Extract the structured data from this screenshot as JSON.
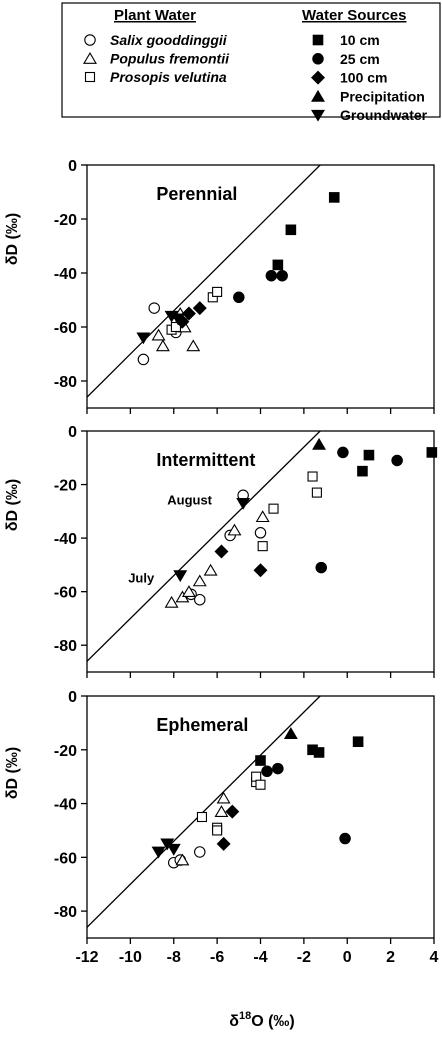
{
  "legend": {
    "plant_water_title": "Plant Water",
    "water_sources_title": "Water Sources",
    "plant_items": [
      {
        "label": "Salix gooddinggii",
        "marker": "circle-open"
      },
      {
        "label": "Populus fremontii",
        "marker": "triangle-open"
      },
      {
        "label": "Prosopis velutina",
        "marker": "square-open"
      }
    ],
    "source_items": [
      {
        "label": "10 cm",
        "marker": "square-filled"
      },
      {
        "label": "25 cm",
        "marker": "circle-filled"
      },
      {
        "label": "100 cm",
        "marker": "diamond-filled"
      },
      {
        "label": "Precipitation",
        "marker": "triangle-filled"
      },
      {
        "label": "Groundwater",
        "marker": "triangle-down-filled"
      }
    ]
  },
  "axes": {
    "x_label": "δ18O (‰)",
    "x_label_base": "δ",
    "x_label_sup": "18",
    "x_label_rest": "O (‰)",
    "y_label": "δD (‰)",
    "x_ticks": [
      -12,
      -10,
      -8,
      -6,
      -4,
      -2,
      0,
      2,
      4
    ],
    "y_ticks": [
      0,
      -20,
      -40,
      -60,
      -80
    ]
  },
  "chart_data": [
    {
      "type": "scatter",
      "title": "Perennial",
      "xlim": [
        -12,
        4
      ],
      "ylim": [
        -90,
        0
      ],
      "xlabel": "",
      "ylabel": "δD (‰)",
      "reference_line": {
        "slope": 8,
        "intercept": 10
      },
      "series": [
        {
          "name": "Salix gooddinggii",
          "marker": "circle-open",
          "points": [
            [
              -8.9,
              -53
            ],
            [
              -9.4,
              -72
            ],
            [
              -7.9,
              -62
            ]
          ]
        },
        {
          "name": "Populus fremontii",
          "marker": "triangle-open",
          "points": [
            [
              -8.7,
              -63
            ],
            [
              -8.5,
              -67
            ],
            [
              -7.5,
              -60
            ],
            [
              -7.1,
              -67
            ],
            [
              -7.7,
              -55
            ]
          ]
        },
        {
          "name": "Prosopis velutina",
          "marker": "square-open",
          "points": [
            [
              -8.1,
              -61
            ],
            [
              -7.6,
              -57
            ],
            [
              -6.2,
              -49
            ],
            [
              -6.0,
              -47
            ],
            [
              -7.9,
              -60
            ]
          ]
        },
        {
          "name": "10 cm",
          "marker": "square-filled",
          "points": [
            [
              -0.6,
              -12
            ],
            [
              -2.6,
              -24
            ],
            [
              -3.2,
              -37
            ]
          ]
        },
        {
          "name": "25 cm",
          "marker": "circle-filled",
          "points": [
            [
              -5.0,
              -49
            ],
            [
              -3.5,
              -41
            ],
            [
              -3.0,
              -41
            ]
          ]
        },
        {
          "name": "100 cm",
          "marker": "diamond-filled",
          "points": [
            [
              -7.3,
              -55
            ],
            [
              -6.8,
              -53
            ],
            [
              -7.6,
              -58
            ]
          ]
        },
        {
          "name": "Groundwater",
          "marker": "triangle-down-filled",
          "points": [
            [
              -9.4,
              -64
            ],
            [
              -8.1,
              -56
            ],
            [
              -7.8,
              -57
            ]
          ]
        }
      ]
    },
    {
      "type": "scatter",
      "title": "Intermittent",
      "xlim": [
        -12,
        4
      ],
      "ylim": [
        -90,
        0
      ],
      "xlabel": "",
      "ylabel": "δD (‰)",
      "reference_line": {
        "slope": 8,
        "intercept": 10
      },
      "annotations": [
        {
          "text": "August",
          "x": -8.3,
          "y": -26
        },
        {
          "text": "July",
          "x": -10.1,
          "y": -55
        }
      ],
      "series": [
        {
          "name": "Salix gooddinggii",
          "marker": "circle-open",
          "points": [
            [
              -4.8,
              -24
            ],
            [
              -5.4,
              -39
            ],
            [
              -4.0,
              -38
            ],
            [
              -7.2,
              -61
            ],
            [
              -6.8,
              -63
            ]
          ]
        },
        {
          "name": "Populus fremontii",
          "marker": "triangle-open",
          "points": [
            [
              -8.1,
              -64
            ],
            [
              -7.6,
              -62
            ],
            [
              -7.3,
              -60
            ],
            [
              -6.8,
              -56
            ],
            [
              -6.3,
              -52
            ],
            [
              -5.2,
              -37
            ],
            [
              -3.9,
              -32
            ]
          ]
        },
        {
          "name": "Prosopis velutina",
          "marker": "square-open",
          "points": [
            [
              -3.4,
              -29
            ],
            [
              -3.9,
              -43
            ],
            [
              -1.6,
              -17
            ],
            [
              -1.4,
              -23
            ]
          ]
        },
        {
          "name": "10 cm",
          "marker": "square-filled",
          "points": [
            [
              0.7,
              -15
            ],
            [
              1.0,
              -9
            ],
            [
              3.9,
              -8
            ]
          ]
        },
        {
          "name": "25 cm",
          "marker": "circle-filled",
          "points": [
            [
              -0.2,
              -8
            ],
            [
              2.3,
              -11
            ],
            [
              -1.2,
              -51
            ]
          ]
        },
        {
          "name": "100 cm",
          "marker": "diamond-filled",
          "points": [
            [
              -5.8,
              -45
            ],
            [
              -4.0,
              -52
            ]
          ]
        },
        {
          "name": "Precipitation",
          "marker": "triangle-filled",
          "points": [
            [
              -1.3,
              -5
            ]
          ]
        },
        {
          "name": "Groundwater",
          "marker": "triangle-down-filled",
          "points": [
            [
              -4.8,
              -27
            ],
            [
              -7.7,
              -54
            ]
          ]
        }
      ]
    },
    {
      "type": "scatter",
      "title": "Ephemeral",
      "xlim": [
        -12,
        4
      ],
      "ylim": [
        -90,
        0
      ],
      "xlabel": "δ18O (‰)",
      "ylabel": "δD (‰)",
      "reference_line": {
        "slope": 8,
        "intercept": 10
      },
      "series": [
        {
          "name": "Salix gooddinggii",
          "marker": "circle-open",
          "points": [
            [
              -8.0,
              -62
            ],
            [
              -7.7,
              -61
            ],
            [
              -6.8,
              -58
            ]
          ]
        },
        {
          "name": "Populus fremontii",
          "marker": "triangle-open",
          "points": [
            [
              -7.6,
              -61
            ],
            [
              -5.8,
              -43
            ],
            [
              -5.7,
              -38
            ]
          ]
        },
        {
          "name": "Prosopis velutina",
          "marker": "square-open",
          "points": [
            [
              -6.7,
              -45
            ],
            [
              -6.0,
              -49
            ],
            [
              -6.0,
              -50
            ],
            [
              -4.2,
              -32
            ],
            [
              -4.2,
              -30
            ],
            [
              -4.0,
              -33
            ]
          ]
        },
        {
          "name": "10 cm",
          "marker": "square-filled",
          "points": [
            [
              -4.0,
              -24
            ],
            [
              -1.6,
              -20
            ],
            [
              -1.3,
              -21
            ],
            [
              0.5,
              -17
            ]
          ]
        },
        {
          "name": "25 cm",
          "marker": "circle-filled",
          "points": [
            [
              -3.7,
              -28
            ],
            [
              -3.2,
              -27
            ],
            [
              -0.1,
              -53
            ]
          ]
        },
        {
          "name": "100 cm",
          "marker": "diamond-filled",
          "points": [
            [
              -5.3,
              -43
            ],
            [
              -5.7,
              -55
            ]
          ]
        },
        {
          "name": "Precipitation",
          "marker": "triangle-filled",
          "points": [
            [
              -2.6,
              -14
            ]
          ]
        },
        {
          "name": "Groundwater",
          "marker": "triangle-down-filled",
          "points": [
            [
              -8.7,
              -58
            ],
            [
              -8.3,
              -55
            ],
            [
              -8.0,
              -57
            ]
          ]
        }
      ]
    }
  ]
}
